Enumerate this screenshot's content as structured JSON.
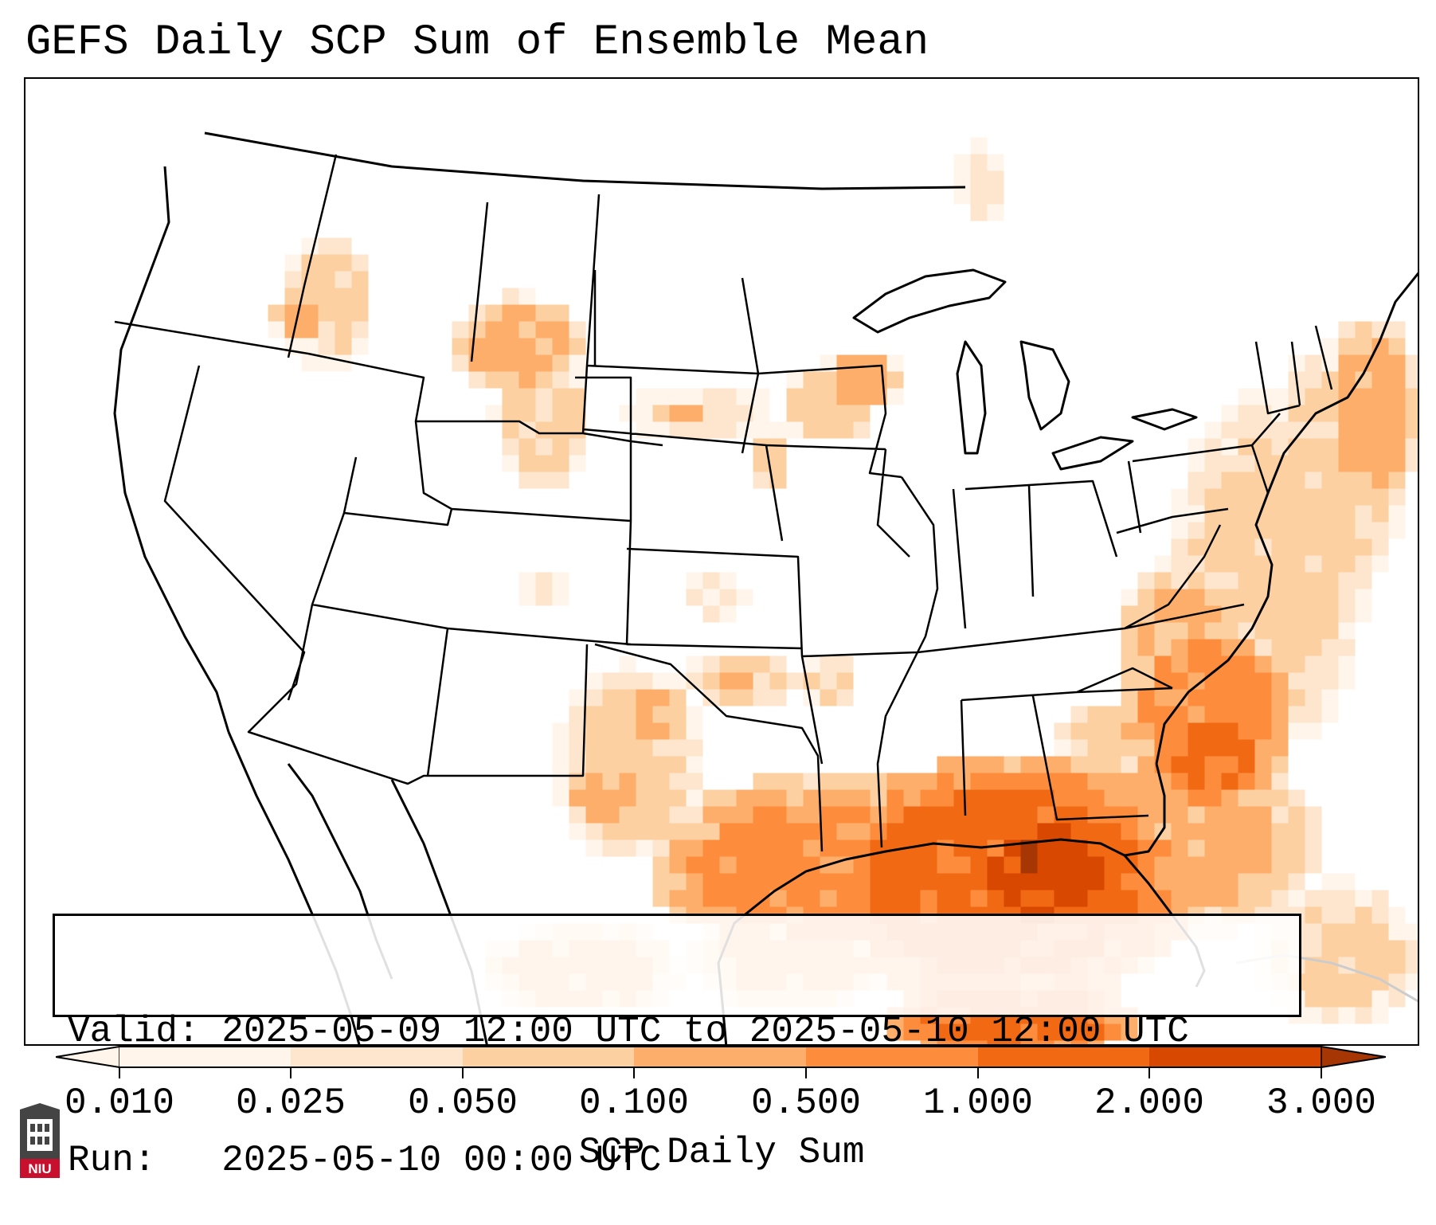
{
  "title": "GEFS Daily SCP Sum of Ensemble Mean",
  "info": {
    "valid_line": "Valid: 2025-05-09 12:00 UTC to 2025-05-10 12:00 UTC",
    "run_line": "Run:   2025-05-10 00:00 UTC"
  },
  "colorbar": {
    "title": "SCP Daily Sum",
    "ticks": [
      "0.010",
      "0.025",
      "0.050",
      "0.100",
      "0.500",
      "1.000",
      "2.000",
      "3.000"
    ],
    "colors": [
      "#fff5eb",
      "#fee6ce",
      "#fdd0a2",
      "#fdae6b",
      "#fd8d3c",
      "#f16913",
      "#d94801",
      "#a63603"
    ],
    "extend": "both"
  },
  "logo": {
    "text": "NIU",
    "color": "#c8102e"
  },
  "map": {
    "region": "Contiguous United States",
    "field": "SCP daily sum",
    "cell_colors": [
      "#fff5eb",
      "#fee6ce",
      "#fdd0a2",
      "#fdae6b",
      "#fd8d3c",
      "#f16913",
      "#d94801",
      "#a63603"
    ]
  }
}
